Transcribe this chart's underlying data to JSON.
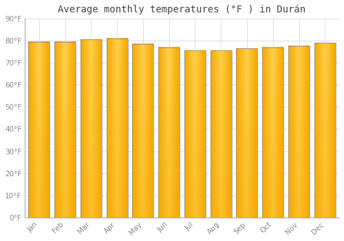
{
  "months": [
    "Jan",
    "Feb",
    "Mar",
    "Apr",
    "May",
    "Jun",
    "Jul",
    "Aug",
    "Sep",
    "Oct",
    "Nov",
    "Dec"
  ],
  "values": [
    79.5,
    79.5,
    80.5,
    81.0,
    78.5,
    77.0,
    75.5,
    75.5,
    76.5,
    77.0,
    77.5,
    79.0
  ],
  "bar_color_light": "#FFD04A",
  "bar_color_dark": "#F5A800",
  "bar_edge_color": "#888888",
  "background_color": "#FFFFFF",
  "plot_bg_color": "#FFFFFF",
  "grid_color": "#DDDDDD",
  "title": "Average monthly temperatures (°F ) in Durán",
  "title_fontsize": 10,
  "tick_label_color": "#888888",
  "ylim": [
    0,
    90
  ],
  "yticks": [
    0,
    10,
    20,
    30,
    40,
    50,
    60,
    70,
    80,
    90
  ],
  "ytick_labels": [
    "0°F",
    "10°F",
    "20°F",
    "30°F",
    "40°F",
    "50°F",
    "60°F",
    "70°F",
    "80°F",
    "90°F"
  ]
}
